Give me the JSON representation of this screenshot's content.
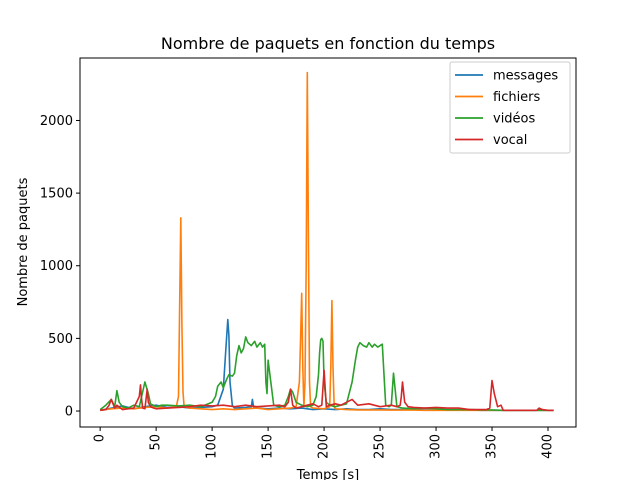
{
  "chart_data": {
    "type": "line",
    "title": "Nombre de paquets en fonction du temps",
    "xlabel": "Temps [s]",
    "ylabel": "Nombre de paquets",
    "xlim": [
      -18,
      425
    ],
    "ylim": [
      -110,
      2430
    ],
    "xticks": [
      0,
      50,
      100,
      150,
      200,
      250,
      300,
      350,
      400
    ],
    "yticks": [
      0,
      500,
      1000,
      1500,
      2000
    ],
    "grid": false,
    "legend_position": "top-right",
    "series": [
      {
        "name": "messages",
        "color": "#1f77b4",
        "x": [
          0,
          10,
          20,
          30,
          40,
          50,
          60,
          70,
          80,
          90,
          100,
          105,
          110,
          112,
          114,
          115,
          116,
          118,
          120,
          130,
          135,
          136,
          137,
          140,
          150,
          160,
          170,
          180,
          190,
          200,
          210,
          220,
          230,
          240,
          250,
          260,
          270,
          280,
          290,
          300,
          310,
          320,
          330,
          340,
          350,
          360,
          370,
          380,
          390,
          400,
          405
        ],
        "y": [
          5,
          20,
          35,
          15,
          30,
          40,
          25,
          30,
          20,
          25,
          30,
          40,
          150,
          400,
          630,
          520,
          200,
          40,
          20,
          25,
          30,
          80,
          30,
          20,
          15,
          20,
          15,
          20,
          10,
          15,
          10,
          15,
          10,
          10,
          15,
          10,
          10,
          10,
          8,
          8,
          8,
          8,
          8,
          5,
          5,
          5,
          5,
          5,
          5,
          5,
          5
        ]
      },
      {
        "name": "fichiers",
        "color": "#ff7f0e",
        "x": [
          0,
          10,
          20,
          30,
          40,
          50,
          60,
          68,
          70,
          71,
          72,
          73,
          74,
          75,
          80,
          90,
          100,
          110,
          120,
          130,
          140,
          150,
          160,
          170,
          175,
          178,
          179,
          180,
          181,
          182,
          183,
          184,
          185,
          186,
          187,
          188,
          190,
          200,
          205,
          206,
          207,
          208,
          209,
          210,
          220,
          230,
          240,
          250,
          260,
          270,
          280,
          290,
          300,
          310,
          320,
          330,
          340,
          350,
          360,
          370,
          380,
          390,
          400,
          405
        ],
        "y": [
          5,
          15,
          20,
          15,
          25,
          30,
          20,
          30,
          100,
          700,
          1330,
          600,
          130,
          30,
          20,
          15,
          10,
          15,
          10,
          15,
          20,
          10,
          15,
          20,
          30,
          200,
          500,
          810,
          300,
          30,
          200,
          1000,
          2330,
          1200,
          200,
          30,
          20,
          15,
          30,
          300,
          760,
          300,
          30,
          15,
          10,
          8,
          8,
          8,
          6,
          6,
          6,
          5,
          5,
          5,
          5,
          5,
          5,
          5,
          5,
          5,
          5,
          5,
          5,
          5
        ]
      },
      {
        "name": "vidéos",
        "color": "#2ca02c",
        "x": [
          0,
          5,
          10,
          13,
          15,
          17,
          20,
          25,
          30,
          35,
          40,
          43,
          45,
          50,
          55,
          60,
          70,
          80,
          90,
          100,
          103,
          105,
          108,
          110,
          113,
          115,
          118,
          120,
          122,
          124,
          126,
          128,
          130,
          132,
          135,
          138,
          140,
          143,
          145,
          147,
          148,
          149,
          150,
          155,
          160,
          165,
          168,
          170,
          172,
          175,
          180,
          185,
          190,
          193,
          195,
          196,
          197,
          198,
          199,
          200,
          202,
          205,
          210,
          215,
          220,
          225,
          228,
          230,
          232,
          235,
          238,
          240,
          243,
          245,
          248,
          250,
          252,
          255,
          258,
          260,
          262,
          265,
          270,
          280,
          290,
          300,
          310,
          320,
          330,
          340,
          350,
          360,
          370,
          380,
          390,
          400,
          405
        ],
        "y": [
          10,
          40,
          80,
          30,
          140,
          60,
          30,
          20,
          40,
          30,
          200,
          120,
          50,
          30,
          40,
          40,
          35,
          40,
          30,
          60,
          100,
          170,
          200,
          160,
          220,
          250,
          240,
          260,
          380,
          450,
          400,
          430,
          510,
          470,
          450,
          480,
          440,
          470,
          440,
          460,
          200,
          120,
          350,
          40,
          30,
          40,
          100,
          150,
          130,
          60,
          40,
          30,
          40,
          100,
          250,
          400,
          490,
          500,
          480,
          200,
          60,
          40,
          30,
          40,
          50,
          200,
          350,
          440,
          470,
          450,
          440,
          470,
          440,
          460,
          440,
          450,
          460,
          40,
          30,
          40,
          260,
          30,
          20,
          15,
          20,
          15,
          10,
          10,
          10,
          8,
          8,
          5,
          5,
          5,
          5,
          5,
          5
        ]
      },
      {
        "name": "vocal",
        "color": "#d62728",
        "x": [
          0,
          5,
          8,
          10,
          13,
          15,
          20,
          25,
          30,
          35,
          36,
          37,
          38,
          40,
          42,
          43,
          45,
          48,
          50,
          60,
          70,
          80,
          90,
          100,
          110,
          120,
          130,
          140,
          150,
          160,
          165,
          168,
          170,
          172,
          175,
          180,
          185,
          190,
          195,
          198,
          200,
          202,
          205,
          210,
          215,
          220,
          225,
          230,
          240,
          250,
          260,
          265,
          268,
          269,
          270,
          272,
          275,
          280,
          290,
          300,
          310,
          320,
          330,
          340,
          345,
          348,
          350,
          352,
          355,
          358,
          360,
          370,
          380,
          390,
          392,
          395,
          400,
          405
        ],
        "y": [
          5,
          10,
          40,
          80,
          20,
          40,
          10,
          15,
          20,
          100,
          180,
          80,
          20,
          15,
          150,
          60,
          30,
          20,
          15,
          20,
          25,
          30,
          40,
          35,
          40,
          30,
          40,
          30,
          35,
          40,
          30,
          60,
          150,
          40,
          20,
          30,
          40,
          50,
          30,
          40,
          280,
          30,
          40,
          50,
          40,
          60,
          80,
          40,
          50,
          30,
          40,
          30,
          40,
          100,
          200,
          60,
          30,
          25,
          20,
          25,
          20,
          20,
          10,
          10,
          10,
          20,
          210,
          120,
          30,
          40,
          5,
          5,
          5,
          5,
          20,
          10,
          5,
          5
        ]
      }
    ]
  }
}
